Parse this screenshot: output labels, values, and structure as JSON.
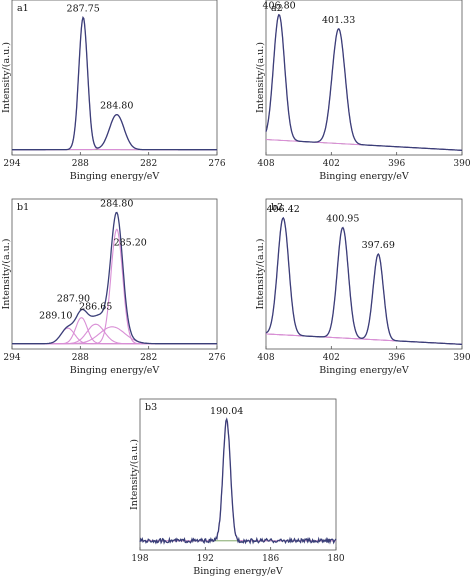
{
  "colors": {
    "envelope": "#3a3f78",
    "fit": "#d98fd6",
    "background": "#6f9a55",
    "frame": "#555555"
  },
  "chart_data": [
    {
      "id": "a1",
      "type": "line",
      "label": "a1",
      "xlabel": "Binging energy/eV",
      "ylabel": "Intensity/(a.u.)",
      "xlim": [
        294,
        276
      ],
      "ylim": [
        0,
        1.0
      ],
      "x_ticks": [
        294,
        288,
        282,
        276
      ],
      "baseline_shape": "flat",
      "peaks": [
        {
          "center": 287.75,
          "height": 0.98,
          "fwhm": 0.9
        },
        {
          "center": 284.8,
          "height": 0.26,
          "fwhm": 1.5
        }
      ],
      "labels": [
        {
          "text": "287.75",
          "at": 287.75
        },
        {
          "text": "284.80",
          "at": 284.8
        }
      ]
    },
    {
      "id": "a2",
      "type": "line",
      "label": "a2",
      "xlabel": "Binging energy/eV",
      "ylabel": "Intensity/(a.u.)",
      "xlim": [
        408,
        390
      ],
      "ylim": [
        0,
        1.0
      ],
      "x_ticks": [
        408,
        402,
        396,
        390
      ],
      "baseline_shape": "sloped",
      "peaks": [
        {
          "center": 406.8,
          "height": 0.93,
          "fwhm": 1.2
        },
        {
          "center": 401.33,
          "height": 0.85,
          "fwhm": 1.4
        }
      ],
      "labels": [
        {
          "text": "406.80",
          "at": 406.8
        },
        {
          "text": "401.33",
          "at": 401.33
        }
      ]
    },
    {
      "id": "b1",
      "type": "line",
      "label": "b1",
      "xlabel": "Binging energy/eV",
      "ylabel": "Intensity/(a.u.)",
      "xlim": [
        294,
        276
      ],
      "ylim": [
        0,
        1.0
      ],
      "x_ticks": [
        294,
        288,
        282,
        276
      ],
      "baseline_shape": "flat",
      "peaks": [
        {
          "center": 289.1,
          "height": 0.12,
          "fwhm": 1.4
        },
        {
          "center": 287.9,
          "height": 0.2,
          "fwhm": 1.2
        },
        {
          "center": 286.65,
          "height": 0.15,
          "fwhm": 1.8
        },
        {
          "center": 284.8,
          "height": 0.88,
          "fwhm": 1.2
        },
        {
          "center": 285.2,
          "height": 0.13,
          "fwhm": 2.6
        }
      ],
      "labels": [
        {
          "text": "284.80",
          "at": 284.8
        },
        {
          "text": "286.65",
          "at": 286.65
        },
        {
          "text": "287.90",
          "at": 287.9
        },
        {
          "text": "289.10",
          "at": 289.1
        },
        {
          "text": "285.20",
          "at": 285.2
        }
      ]
    },
    {
      "id": "b2",
      "type": "line",
      "label": "b2",
      "xlabel": "Binging energy/eV",
      "ylabel": "Intensity/(a.u.)",
      "xlim": [
        408,
        390
      ],
      "ylim": [
        0,
        1.0
      ],
      "x_ticks": [
        408,
        402,
        396,
        390
      ],
      "baseline_shape": "sloped",
      "peaks": [
        {
          "center": 406.42,
          "height": 0.9,
          "fwhm": 1.2
        },
        {
          "center": 400.95,
          "height": 0.85,
          "fwhm": 1.2
        },
        {
          "center": 397.69,
          "height": 0.66,
          "fwhm": 1.1
        }
      ],
      "labels": [
        {
          "text": "406.42",
          "at": 406.42
        },
        {
          "text": "400.95",
          "at": 400.95
        },
        {
          "text": "397.69",
          "at": 397.69
        }
      ]
    },
    {
      "id": "b3",
      "type": "line",
      "label": "b3",
      "xlabel": "Binging energy/eV",
      "ylabel": "Intensity/(a.u.)",
      "xlim": [
        198,
        180
      ],
      "ylim": [
        0,
        1.0
      ],
      "x_ticks": [
        198,
        192,
        186,
        180
      ],
      "baseline_shape": "noisy",
      "peaks": [
        {
          "center": 190.04,
          "height": 0.92,
          "fwhm": 0.8
        }
      ],
      "labels": [
        {
          "text": "190.04",
          "at": 190.04
        }
      ]
    }
  ]
}
